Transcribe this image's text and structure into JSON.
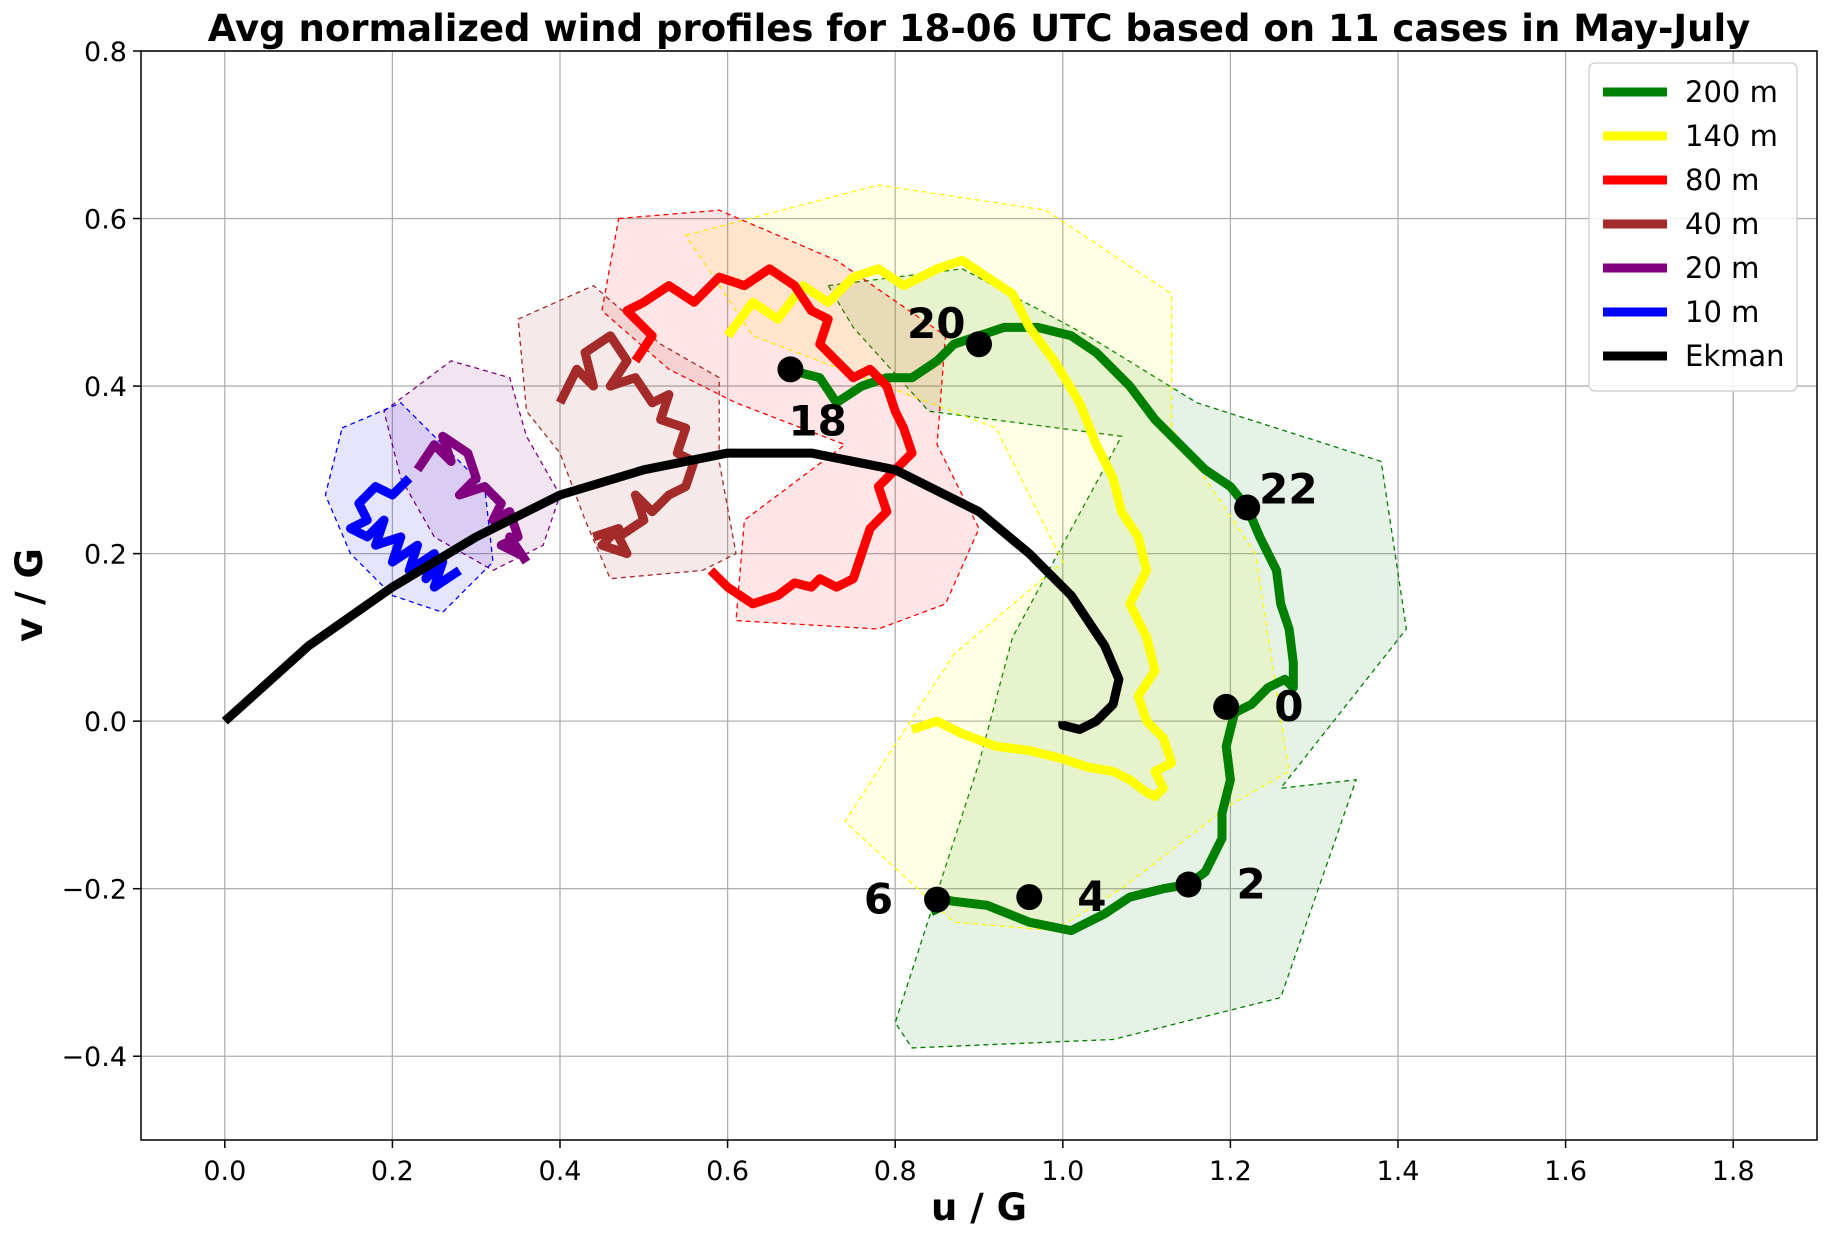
{
  "chart_data": {
    "type": "line",
    "title": "Avg normalized wind profiles for 18-06 UTC based on 11 cases in May-July",
    "xlabel": "u / G",
    "ylabel": "v / G",
    "xlim": [
      -0.1,
      1.9
    ],
    "ylim": [
      -0.5,
      0.8
    ],
    "xticks": [
      0.0,
      0.2,
      0.4,
      0.6,
      0.8,
      1.0,
      1.2,
      1.4,
      1.6,
      1.8
    ],
    "yticks": [
      -0.4,
      -0.2,
      0.0,
      0.2,
      0.4,
      0.6,
      0.8
    ],
    "xtick_labels": [
      "0.0",
      "0.2",
      "0.4",
      "0.6",
      "0.8",
      "1.0",
      "1.2",
      "1.4",
      "1.6",
      "1.8"
    ],
    "ytick_labels": [
      "−0.4",
      "−0.2",
      "0.0",
      "0.2",
      "0.4",
      "0.6",
      "0.8"
    ],
    "grid": true,
    "legend_position": "top-right",
    "series": [
      {
        "name": "200 m",
        "color": "#008000",
        "x": [
          0.67,
          0.71,
          0.73,
          0.76,
          0.79,
          0.82,
          0.85,
          0.87,
          0.9,
          0.93,
          0.97,
          1.01,
          1.04,
          1.08,
          1.11,
          1.14,
          1.17,
          1.2,
          1.22,
          1.235,
          1.255,
          1.26,
          1.27,
          1.275,
          1.275,
          1.265,
          1.245,
          1.225,
          1.205,
          1.195,
          1.2,
          1.19,
          1.19,
          1.18,
          1.17,
          1.15,
          1.12,
          1.08,
          1.05,
          1.01,
          0.96,
          0.91,
          0.87,
          0.84,
          0.85
        ],
        "y": [
          0.42,
          0.41,
          0.38,
          0.4,
          0.41,
          0.41,
          0.43,
          0.45,
          0.46,
          0.47,
          0.47,
          0.46,
          0.44,
          0.4,
          0.36,
          0.33,
          0.3,
          0.28,
          0.255,
          0.22,
          0.18,
          0.14,
          0.11,
          0.07,
          0.04,
          0.05,
          0.04,
          0.02,
          0.01,
          -0.03,
          -0.07,
          -0.11,
          -0.14,
          -0.16,
          -0.18,
          -0.195,
          -0.2,
          -0.21,
          -0.23,
          -0.25,
          -0.24,
          -0.22,
          -0.215,
          -0.21,
          -0.23
        ]
      },
      {
        "name": "140 m",
        "color": "#ffff00",
        "x": [
          0.6,
          0.63,
          0.66,
          0.69,
          0.72,
          0.75,
          0.78,
          0.81,
          0.85,
          0.88,
          0.91,
          0.94,
          0.96,
          0.99,
          1.02,
          1.04,
          1.06,
          1.07,
          1.09,
          1.1,
          1.08,
          1.1,
          1.11,
          1.09,
          1.1,
          1.12,
          1.13,
          1.11,
          1.12,
          1.11,
          1.1,
          1.08,
          1.06,
          1.03,
          1.0,
          0.96,
          0.92,
          0.88,
          0.85,
          0.82
        ],
        "y": [
          0.46,
          0.5,
          0.48,
          0.52,
          0.5,
          0.53,
          0.54,
          0.52,
          0.54,
          0.55,
          0.53,
          0.51,
          0.47,
          0.43,
          0.38,
          0.33,
          0.29,
          0.25,
          0.22,
          0.18,
          0.14,
          0.1,
          0.06,
          0.03,
          0.0,
          -0.02,
          -0.05,
          -0.06,
          -0.08,
          -0.09,
          -0.085,
          -0.07,
          -0.06,
          -0.055,
          -0.045,
          -0.035,
          -0.03,
          -0.015,
          0.0,
          -0.01
        ]
      },
      {
        "name": "80 m",
        "color": "#ff0000",
        "x": [
          0.49,
          0.51,
          0.48,
          0.5,
          0.53,
          0.56,
          0.59,
          0.62,
          0.65,
          0.68,
          0.7,
          0.72,
          0.71,
          0.73,
          0.75,
          0.77,
          0.79,
          0.8,
          0.81,
          0.82,
          0.8,
          0.78,
          0.79,
          0.77,
          0.76,
          0.75,
          0.73,
          0.71,
          0.7,
          0.68,
          0.66,
          0.63,
          0.6,
          0.58
        ],
        "y": [
          0.43,
          0.46,
          0.49,
          0.5,
          0.52,
          0.5,
          0.53,
          0.52,
          0.54,
          0.52,
          0.49,
          0.48,
          0.45,
          0.43,
          0.41,
          0.42,
          0.4,
          0.37,
          0.35,
          0.32,
          0.3,
          0.28,
          0.25,
          0.23,
          0.2,
          0.17,
          0.16,
          0.17,
          0.16,
          0.165,
          0.15,
          0.14,
          0.16,
          0.18
        ]
      },
      {
        "name": "40 m",
        "color": "#a52a2a",
        "x": [
          0.4,
          0.42,
          0.44,
          0.43,
          0.46,
          0.48,
          0.46,
          0.49,
          0.51,
          0.53,
          0.52,
          0.55,
          0.54,
          0.56,
          0.55,
          0.53,
          0.51,
          0.49,
          0.5,
          0.47,
          0.48,
          0.45,
          0.47,
          0.44
        ],
        "y": [
          0.38,
          0.42,
          0.4,
          0.44,
          0.46,
          0.43,
          0.4,
          0.41,
          0.38,
          0.39,
          0.36,
          0.35,
          0.32,
          0.31,
          0.28,
          0.27,
          0.25,
          0.27,
          0.24,
          0.22,
          0.2,
          0.21,
          0.23,
          0.22
        ]
      },
      {
        "name": "20 m",
        "color": "#800080",
        "x": [
          0.23,
          0.25,
          0.27,
          0.26,
          0.29,
          0.3,
          0.28,
          0.31,
          0.33,
          0.32,
          0.34,
          0.35,
          0.33,
          0.35,
          0.34,
          0.36
        ],
        "y": [
          0.3,
          0.33,
          0.31,
          0.34,
          0.32,
          0.29,
          0.27,
          0.28,
          0.26,
          0.24,
          0.25,
          0.22,
          0.21,
          0.2,
          0.22,
          0.19
        ]
      },
      {
        "name": "10 m",
        "color": "#0000ff",
        "x": [
          0.22,
          0.2,
          0.18,
          0.16,
          0.17,
          0.15,
          0.17,
          0.19,
          0.18,
          0.21,
          0.2,
          0.23,
          0.22,
          0.25,
          0.24,
          0.26,
          0.25,
          0.28
        ],
        "y": [
          0.29,
          0.27,
          0.28,
          0.26,
          0.24,
          0.23,
          0.22,
          0.24,
          0.21,
          0.22,
          0.19,
          0.21,
          0.18,
          0.2,
          0.17,
          0.19,
          0.16,
          0.18
        ]
      },
      {
        "name": "Ekman",
        "color": "#000000",
        "x": [
          0.0,
          0.1,
          0.2,
          0.3,
          0.4,
          0.5,
          0.6,
          0.7,
          0.8,
          0.9,
          0.96,
          1.01,
          1.05,
          1.067,
          1.06,
          1.04,
          1.02,
          1.0,
          1.0
        ],
        "y": [
          0.0,
          0.09,
          0.16,
          0.22,
          0.27,
          0.3,
          0.32,
          0.32,
          0.3,
          0.25,
          0.2,
          0.15,
          0.09,
          0.05,
          0.02,
          0.0,
          -0.01,
          -0.005,
          0.0
        ]
      }
    ],
    "markers": [
      {
        "label": "18",
        "x": 0.675,
        "y": 0.42,
        "label_pos": "below"
      },
      {
        "label": "20",
        "x": 0.9,
        "y": 0.45,
        "label_pos": "above-left"
      },
      {
        "label": "22",
        "x": 1.22,
        "y": 0.255,
        "label_pos": "above-right"
      },
      {
        "label": "0",
        "x": 1.195,
        "y": 0.017,
        "label_pos": "right"
      },
      {
        "label": "2",
        "x": 1.15,
        "y": -0.195,
        "label_pos": "right"
      },
      {
        "label": "4",
        "x": 0.96,
        "y": -0.21,
        "label_pos": "right"
      },
      {
        "label": "6",
        "x": 0.85,
        "y": -0.213,
        "label_pos": "left"
      }
    ],
    "uncertainty_regions": [
      {
        "series": "200 m",
        "color": "#008000",
        "points": [
          [
            0.72,
            0.52
          ],
          [
            0.88,
            0.54
          ],
          [
            1.03,
            0.46
          ],
          [
            1.16,
            0.38
          ],
          [
            1.38,
            0.31
          ],
          [
            1.41,
            0.11
          ],
          [
            1.26,
            -0.08
          ],
          [
            1.35,
            -0.07
          ],
          [
            1.26,
            -0.33
          ],
          [
            1.06,
            -0.38
          ],
          [
            0.82,
            -0.39
          ],
          [
            0.8,
            -0.36
          ],
          [
            0.9,
            -0.05
          ],
          [
            0.94,
            0.1
          ],
          [
            1.07,
            0.34
          ],
          [
            0.84,
            0.37
          ],
          [
            0.75,
            0.47
          ]
        ]
      },
      {
        "series": "140 m",
        "color": "#ffff00",
        "points": [
          [
            0.55,
            0.58
          ],
          [
            0.78,
            0.64
          ],
          [
            0.98,
            0.61
          ],
          [
            1.13,
            0.51
          ],
          [
            1.13,
            0.35
          ],
          [
            1.23,
            0.2
          ],
          [
            1.27,
            -0.06
          ],
          [
            1.2,
            -0.1
          ],
          [
            1.07,
            -0.2
          ],
          [
            0.99,
            -0.25
          ],
          [
            0.87,
            -0.24
          ],
          [
            0.74,
            -0.12
          ],
          [
            0.87,
            0.08
          ],
          [
            1.0,
            0.19
          ],
          [
            0.92,
            0.35
          ],
          [
            0.63,
            0.46
          ]
        ]
      },
      {
        "series": "80 m",
        "color": "#ff0000",
        "points": [
          [
            0.47,
            0.6
          ],
          [
            0.59,
            0.61
          ],
          [
            0.73,
            0.55
          ],
          [
            0.86,
            0.46
          ],
          [
            0.85,
            0.33
          ],
          [
            0.9,
            0.23
          ],
          [
            0.86,
            0.14
          ],
          [
            0.78,
            0.11
          ],
          [
            0.61,
            0.12
          ],
          [
            0.62,
            0.24
          ],
          [
            0.74,
            0.33
          ],
          [
            0.61,
            0.38
          ],
          [
            0.53,
            0.42
          ],
          [
            0.45,
            0.49
          ]
        ]
      },
      {
        "series": "40 m",
        "color": "#a52a2a",
        "points": [
          [
            0.35,
            0.48
          ],
          [
            0.44,
            0.52
          ],
          [
            0.52,
            0.45
          ],
          [
            0.59,
            0.41
          ],
          [
            0.59,
            0.31
          ],
          [
            0.61,
            0.2
          ],
          [
            0.57,
            0.18
          ],
          [
            0.46,
            0.17
          ],
          [
            0.43,
            0.24
          ],
          [
            0.4,
            0.32
          ],
          [
            0.36,
            0.37
          ]
        ]
      },
      {
        "series": "20 m",
        "color": "#800080",
        "points": [
          [
            0.19,
            0.37
          ],
          [
            0.27,
            0.43
          ],
          [
            0.34,
            0.41
          ],
          [
            0.36,
            0.34
          ],
          [
            0.4,
            0.27
          ],
          [
            0.38,
            0.21
          ],
          [
            0.32,
            0.18
          ],
          [
            0.25,
            0.22
          ],
          [
            0.21,
            0.29
          ]
        ]
      },
      {
        "series": "10 m",
        "color": "#0000ff",
        "points": [
          [
            0.14,
            0.35
          ],
          [
            0.21,
            0.38
          ],
          [
            0.26,
            0.33
          ],
          [
            0.31,
            0.28
          ],
          [
            0.32,
            0.19
          ],
          [
            0.26,
            0.13
          ],
          [
            0.2,
            0.15
          ],
          [
            0.15,
            0.2
          ],
          [
            0.12,
            0.27
          ]
        ]
      }
    ]
  }
}
